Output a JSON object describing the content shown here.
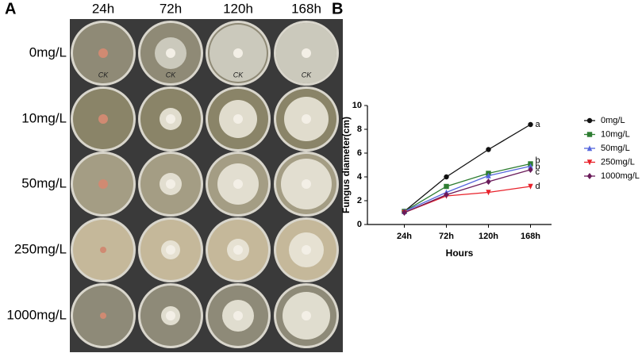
{
  "panel_a": {
    "label": "A",
    "columns": [
      "24h",
      "72h",
      "120h",
      "168h"
    ],
    "rows": [
      "0mg/L",
      "10mg/L",
      "50mg/L",
      "250mg/L",
      "1000mg/L"
    ],
    "plate_notes": [
      "CK",
      "CK",
      "CK",
      "CK"
    ]
  },
  "chart_data": {
    "type": "line",
    "panel_label": "B",
    "x_label": "Hours",
    "y_label": "Fungus diameter(cm)",
    "categories": [
      "24h",
      "72h",
      "120h",
      "168h"
    ],
    "ylim": [
      0,
      10
    ],
    "yticks": [
      0,
      2,
      4,
      6,
      8,
      10
    ],
    "series": [
      {
        "name": "0mg/L",
        "color": "#111111",
        "marker": "circle",
        "letter": "a",
        "values": [
          1.1,
          4.0,
          6.3,
          8.4
        ],
        "errors": [
          0.05,
          0.1,
          0.2,
          0.15
        ]
      },
      {
        "name": "10mg/L",
        "color": "#2e7d32",
        "marker": "square",
        "letter": "b",
        "values": [
          1.1,
          3.2,
          4.3,
          5.1
        ],
        "errors": [
          0.05,
          0.1,
          0.1,
          0.1
        ]
      },
      {
        "name": "50mg/L",
        "color": "#5566dd",
        "marker": "triangle-up",
        "letter": "b",
        "values": [
          1.1,
          2.7,
          4.1,
          4.9
        ],
        "errors": [
          0.05,
          0.1,
          0.1,
          0.1
        ]
      },
      {
        "name": "250mg/L",
        "color": "#e8212a",
        "marker": "triangle-down",
        "letter": "d",
        "values": [
          1.0,
          2.4,
          2.7,
          3.2
        ],
        "errors": [
          0.05,
          0.1,
          0.1,
          0.1
        ]
      },
      {
        "name": "1000mg/L",
        "color": "#6a1b5a",
        "marker": "diamond",
        "letter": "c",
        "values": [
          1.0,
          2.5,
          3.6,
          4.6
        ],
        "errors": [
          0.05,
          0.1,
          0.1,
          0.1
        ]
      }
    ]
  }
}
